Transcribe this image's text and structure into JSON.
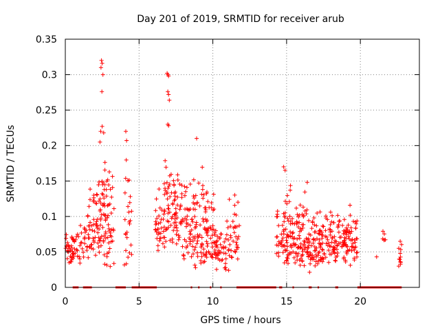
{
  "chart_data": {
    "type": "scatter",
    "title": "Day 201 of 2019, SRMTID for receiver arub",
    "xlabel": "GPS time / hours",
    "ylabel": "SRMTID / TECUs",
    "xlim": [
      0,
      24
    ],
    "ylim": [
      0,
      0.35
    ],
    "grid": true,
    "marker": "+",
    "colors": {
      "points": "#ff0000",
      "grid": "#808080",
      "axes": "#000000"
    },
    "x_ticks": [
      {
        "value": 0,
        "label": "0"
      },
      {
        "value": 5,
        "label": "5"
      },
      {
        "value": 10,
        "label": "10"
      },
      {
        "value": 15,
        "label": "15"
      },
      {
        "value": 20,
        "label": "20"
      }
    ],
    "y_ticks": [
      {
        "value": 0,
        "label": "0"
      },
      {
        "value": 0.05,
        "label": "0.05"
      },
      {
        "value": 0.1,
        "label": "0.1"
      },
      {
        "value": 0.15,
        "label": "0.15"
      },
      {
        "value": 0.2,
        "label": "0.2"
      },
      {
        "value": 0.25,
        "label": "0.25"
      },
      {
        "value": 0.3,
        "label": "0.3"
      },
      {
        "value": 0.35,
        "label": "0.35"
      }
    ],
    "highlights": [
      [
        2.45,
        0.32
      ],
      [
        2.5,
        0.316
      ],
      [
        2.42,
        0.31
      ],
      [
        2.55,
        0.3
      ],
      [
        2.48,
        0.276
      ],
      [
        6.9,
        0.302
      ],
      [
        7.0,
        0.298
      ],
      [
        6.95,
        0.3
      ],
      [
        7.0,
        0.272
      ],
      [
        6.95,
        0.276
      ],
      [
        7.05,
        0.264
      ],
      [
        6.95,
        0.23
      ],
      [
        7.0,
        0.228
      ],
      [
        2.5,
        0.227
      ],
      [
        2.4,
        0.22
      ],
      [
        2.6,
        0.218
      ],
      [
        2.35,
        0.205
      ],
      [
        4.1,
        0.22
      ],
      [
        4.15,
        0.207
      ],
      [
        8.9,
        0.21
      ],
      [
        14.8,
        0.17
      ],
      [
        14.9,
        0.165
      ],
      [
        16.4,
        0.148
      ],
      [
        22.7,
        0.065
      ],
      [
        22.6,
        0.03
      ],
      [
        21.1,
        0.043
      ]
    ],
    "clusters": [
      {
        "x0": 0.0,
        "x1": 0.5,
        "y0": 0.03,
        "y1": 0.09,
        "n": 30
      },
      {
        "x0": 0.5,
        "x1": 1.5,
        "y0": 0.03,
        "y1": 0.1,
        "n": 40
      },
      {
        "x0": 1.5,
        "x1": 2.1,
        "y0": 0.04,
        "y1": 0.15,
        "n": 35
      },
      {
        "x0": 2.1,
        "x1": 2.8,
        "y0": 0.03,
        "y1": 0.2,
        "n": 60
      },
      {
        "x0": 2.8,
        "x1": 3.3,
        "y0": 0.02,
        "y1": 0.18,
        "n": 35
      },
      {
        "x0": 4.0,
        "x1": 4.5,
        "y0": 0.03,
        "y1": 0.2,
        "n": 25
      },
      {
        "x0": 6.1,
        "x1": 6.8,
        "y0": 0.04,
        "y1": 0.14,
        "n": 35
      },
      {
        "x0": 6.7,
        "x1": 7.3,
        "y0": 0.06,
        "y1": 0.19,
        "n": 40
      },
      {
        "x0": 7.3,
        "x1": 8.0,
        "y0": 0.05,
        "y1": 0.18,
        "n": 45
      },
      {
        "x0": 8.0,
        "x1": 8.7,
        "y0": 0.03,
        "y1": 0.17,
        "n": 45
      },
      {
        "x0": 8.7,
        "x1": 9.5,
        "y0": 0.02,
        "y1": 0.18,
        "n": 55
      },
      {
        "x0": 9.5,
        "x1": 10.1,
        "y0": 0.02,
        "y1": 0.15,
        "n": 45
      },
      {
        "x0": 10.1,
        "x1": 10.9,
        "y0": 0.02,
        "y1": 0.1,
        "n": 45
      },
      {
        "x0": 10.9,
        "x1": 11.8,
        "y0": 0.02,
        "y1": 0.14,
        "n": 40
      },
      {
        "x0": 14.3,
        "x1": 14.8,
        "y0": 0.04,
        "y1": 0.12,
        "n": 25
      },
      {
        "x0": 14.8,
        "x1": 15.5,
        "y0": 0.03,
        "y1": 0.16,
        "n": 55
      },
      {
        "x0": 15.5,
        "x1": 16.3,
        "y0": 0.03,
        "y1": 0.14,
        "n": 60
      },
      {
        "x0": 16.3,
        "x1": 17.0,
        "y0": 0.02,
        "y1": 0.12,
        "n": 50
      },
      {
        "x0": 17.0,
        "x1": 17.8,
        "y0": 0.03,
        "y1": 0.11,
        "n": 50
      },
      {
        "x0": 17.8,
        "x1": 18.6,
        "y0": 0.03,
        "y1": 0.12,
        "n": 50
      },
      {
        "x0": 18.6,
        "x1": 19.3,
        "y0": 0.03,
        "y1": 0.12,
        "n": 45
      },
      {
        "x0": 19.3,
        "x1": 19.8,
        "y0": 0.03,
        "y1": 0.11,
        "n": 30
      },
      {
        "x0": 21.4,
        "x1": 21.7,
        "y0": 0.06,
        "y1": 0.09,
        "n": 6
      },
      {
        "x0": 22.5,
        "x1": 22.8,
        "y0": 0.03,
        "y1": 0.065,
        "n": 10
      }
    ],
    "zero_segments": [
      [
        0.5,
        0.7
      ],
      [
        0.7,
        0.9
      ],
      [
        1.2,
        1.6
      ],
      [
        1.6,
        1.8
      ],
      [
        3.4,
        4.1
      ],
      [
        4.5,
        6.2
      ],
      [
        8.5,
        8.6
      ],
      [
        9.0,
        9.1
      ],
      [
        9.8,
        9.9
      ],
      [
        10.5,
        10.6
      ],
      [
        11.6,
        14.3
      ],
      [
        14.5,
        14.7
      ],
      [
        15.4,
        15.5
      ],
      [
        16.5,
        16.7
      ],
      [
        17.1,
        17.2
      ],
      [
        18.3,
        18.5
      ],
      [
        19.8,
        22.8
      ]
    ]
  }
}
